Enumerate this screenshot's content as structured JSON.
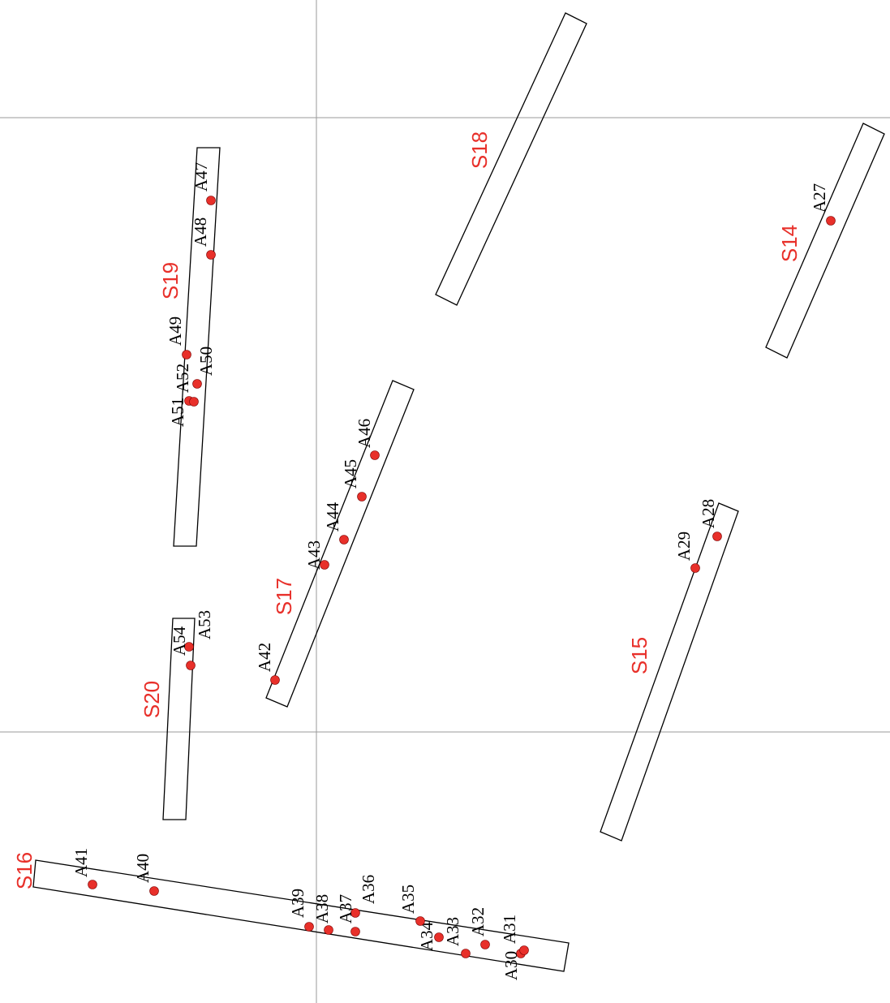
{
  "colors": {
    "strip_label": "#e8302a",
    "point_fill": "#e8302a",
    "strip_outline": "#000000",
    "grid_line": "#9a9a9a"
  },
  "strips": [
    {
      "id": "S14",
      "label": "S14"
    },
    {
      "id": "S15",
      "label": "S15"
    },
    {
      "id": "S16",
      "label": "S16"
    },
    {
      "id": "S17",
      "label": "S17"
    },
    {
      "id": "S18",
      "label": "S18"
    },
    {
      "id": "S19",
      "label": "S19"
    },
    {
      "id": "S20",
      "label": "S20"
    }
  ],
  "points": [
    {
      "id": "A27",
      "label": "A27"
    },
    {
      "id": "A28",
      "label": "A28"
    },
    {
      "id": "A29",
      "label": "A29"
    },
    {
      "id": "A30",
      "label": "A30"
    },
    {
      "id": "A31",
      "label": "A31"
    },
    {
      "id": "A32",
      "label": "A32"
    },
    {
      "id": "A33",
      "label": "A33"
    },
    {
      "id": "A34",
      "label": "A34"
    },
    {
      "id": "A35",
      "label": "A35"
    },
    {
      "id": "A36",
      "label": "A36"
    },
    {
      "id": "A37",
      "label": "A37"
    },
    {
      "id": "A38",
      "label": "A38"
    },
    {
      "id": "A39",
      "label": "A39"
    },
    {
      "id": "A40",
      "label": "A40"
    },
    {
      "id": "A41",
      "label": "A41"
    },
    {
      "id": "A42",
      "label": "A42"
    },
    {
      "id": "A43",
      "label": "A43"
    },
    {
      "id": "A44",
      "label": "A44"
    },
    {
      "id": "A45",
      "label": "A45"
    },
    {
      "id": "A46",
      "label": "A46"
    },
    {
      "id": "A47",
      "label": "A47"
    },
    {
      "id": "A48",
      "label": "A48"
    },
    {
      "id": "A49",
      "label": "A49"
    },
    {
      "id": "A50",
      "label": "A50"
    },
    {
      "id": "A51",
      "label": "A51"
    },
    {
      "id": "A52",
      "label": "A52"
    },
    {
      "id": "A53",
      "label": "A53"
    },
    {
      "id": "A54",
      "label": "A54"
    }
  ]
}
